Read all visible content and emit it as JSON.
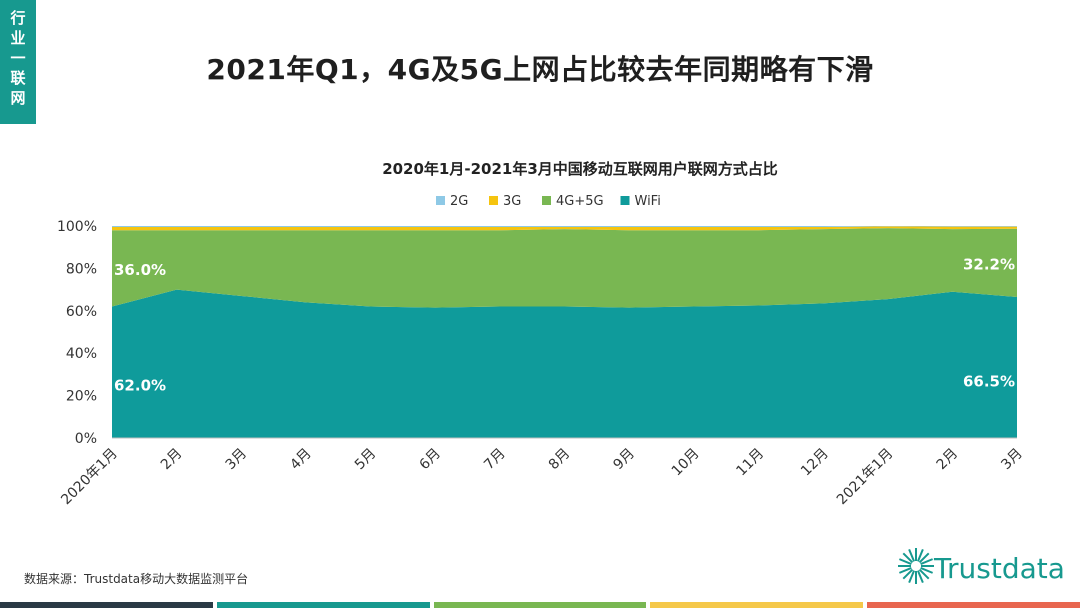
{
  "side_tag": [
    "行",
    "业",
    "一",
    "联",
    "网"
  ],
  "page_title": "2021年Q1，4G及5G上网占比较去年同期略有下滑",
  "source": "数据来源：Trustdata移动大数据监测平台",
  "logo_text": "Trustdata",
  "colors": {
    "2G": "#8ec9e6",
    "3G": "#f5c40f",
    "4G+5G": "#79b752",
    "WiFi": "#0f9b9b",
    "brand": "#17998f",
    "bottom_bar": [
      "#2a3a45",
      "#17998f",
      "#79b752",
      "#f5c84a",
      "#e8664f"
    ]
  },
  "chart_data": {
    "type": "area",
    "stacked": true,
    "title": "2020年1月-2021年3月中国移动互联网用户联网方式占比",
    "categories": [
      "2020年1月",
      "2月",
      "3月",
      "4月",
      "5月",
      "6月",
      "7月",
      "8月",
      "9月",
      "10月",
      "11月",
      "12月",
      "2021年1月",
      "2月",
      "3月"
    ],
    "ylim": [
      0,
      100
    ],
    "yticks": [
      "0%",
      "20%",
      "40%",
      "60%",
      "80%",
      "100%"
    ],
    "grid": false,
    "legend_position": "top",
    "series": [
      {
        "name": "WiFi",
        "values": [
          62.0,
          70.0,
          67.0,
          64.0,
          62.0,
          61.5,
          62.0,
          62.0,
          61.5,
          62.0,
          62.5,
          63.5,
          65.5,
          69.0,
          66.5
        ]
      },
      {
        "name": "4G+5G",
        "values": [
          36.0,
          28.0,
          31.0,
          34.0,
          36.0,
          36.5,
          36.0,
          36.5,
          36.5,
          36.0,
          35.5,
          35.0,
          33.5,
          29.5,
          32.2
        ]
      },
      {
        "name": "3G",
        "values": [
          1.5,
          1.5,
          1.5,
          1.5,
          1.5,
          1.5,
          1.5,
          1.0,
          1.5,
          1.5,
          1.5,
          1.0,
          0.8,
          1.2,
          1.0
        ]
      },
      {
        "name": "2G",
        "values": [
          0.5,
          0.5,
          0.5,
          0.5,
          0.5,
          0.5,
          0.5,
          0.5,
          0.5,
          0.5,
          0.5,
          0.5,
          0.2,
          0.3,
          0.3
        ]
      }
    ],
    "legend_order": [
      "2G",
      "3G",
      "4G+5G",
      "WiFi"
    ],
    "annotations": [
      {
        "text": "36.0%",
        "series": "4G+5G",
        "index": 0
      },
      {
        "text": "62.0%",
        "series": "WiFi",
        "index": 0
      },
      {
        "text": "32.2%",
        "series": "4G+5G",
        "index": 14
      },
      {
        "text": "66.5%",
        "series": "WiFi",
        "index": 14
      }
    ]
  }
}
